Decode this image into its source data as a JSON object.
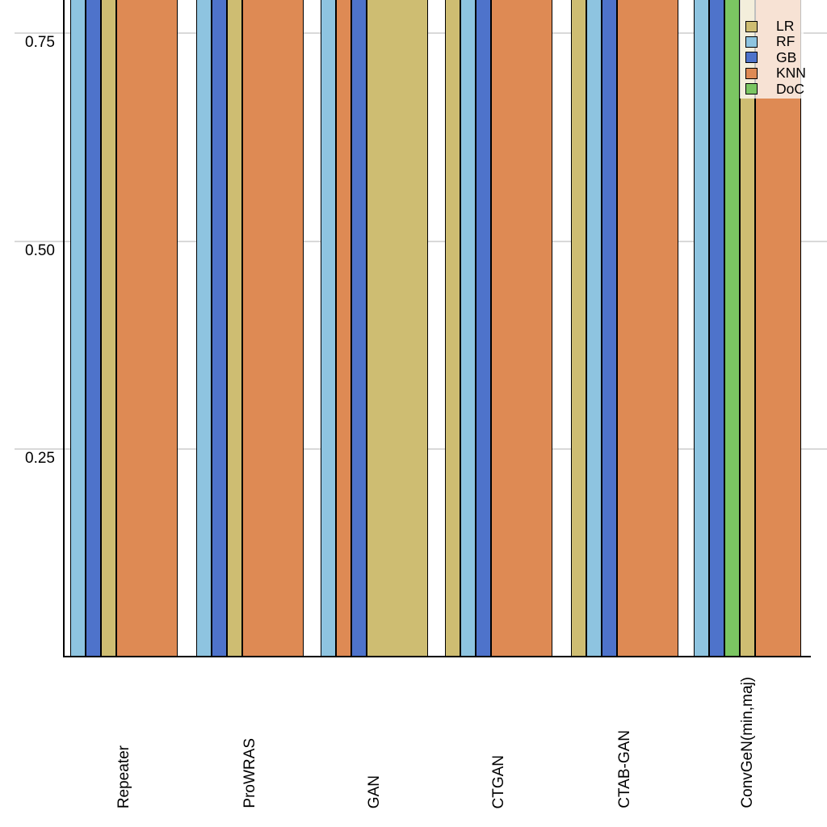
{
  "chart_data": {
    "type": "bar",
    "title": "",
    "xlabel": "",
    "ylabel": "",
    "categories": [
      "Repeater",
      "ProWRAS",
      "GAN",
      "CTGAN",
      "CTAB-GAN",
      "ConvGeN(min,maj)"
    ],
    "y_axis": {
      "tick_labels": [
        "0.75",
        "0.50",
        "0.25"
      ],
      "tick_values": [
        0.75,
        0.5,
        0.25
      ],
      "visible_value_range": [
        0.0,
        0.79
      ],
      "grid": true
    },
    "bars_clipped_at_top": true,
    "clip_note": "Every visible bar runs past the cropped top edge of the image; all depicted values exceed ~0.79 and exact bar tops are not visible.",
    "legend": {
      "position": "top-right",
      "entries": [
        {
          "label": "LR",
          "color": "#CEBD72"
        },
        {
          "label": "RF",
          "color": "#8EC4E0"
        },
        {
          "label": "GB",
          "color": "#4E73CB"
        },
        {
          "label": "KNN",
          "color": "#DE8A54"
        },
        {
          "label": "DoC",
          "color": "#7BC662"
        }
      ]
    },
    "series_colors": {
      "LR": "#CEBD72",
      "RF": "#8EC4E0",
      "GB": "#4E73CB",
      "KNN": "#DE8A54",
      "DoC": "#7BC662"
    },
    "groups": [
      {
        "category": "Repeater",
        "bars": [
          {
            "series": "RF",
            "units": 1
          },
          {
            "series": "GB",
            "units": 1
          },
          {
            "series": "LR",
            "units": 1
          },
          {
            "series": "KNN",
            "units": 4
          }
        ]
      },
      {
        "category": "ProWRAS",
        "bars": [
          {
            "series": "RF",
            "units": 1
          },
          {
            "series": "GB",
            "units": 1
          },
          {
            "series": "LR",
            "units": 1
          },
          {
            "series": "KNN",
            "units": 4
          }
        ]
      },
      {
        "category": "GAN",
        "bars": [
          {
            "series": "RF",
            "units": 1
          },
          {
            "series": "KNN",
            "units": 1
          },
          {
            "series": "GB",
            "units": 1
          },
          {
            "series": "LR",
            "units": 4
          }
        ]
      },
      {
        "category": "CTGAN",
        "bars": [
          {
            "series": "LR",
            "units": 1
          },
          {
            "series": "RF",
            "units": 1
          },
          {
            "series": "GB",
            "units": 1
          },
          {
            "series": "KNN",
            "units": 4
          }
        ]
      },
      {
        "category": "CTAB-GAN",
        "bars": [
          {
            "series": "LR",
            "units": 1
          },
          {
            "series": "RF",
            "units": 1
          },
          {
            "series": "GB",
            "units": 1
          },
          {
            "series": "KNN",
            "units": 4
          }
        ]
      },
      {
        "category": "ConvGeN(min,maj)",
        "bars": [
          {
            "series": "RF",
            "units": 1
          },
          {
            "series": "GB",
            "units": 1
          },
          {
            "series": "DoC",
            "units": 1
          },
          {
            "series": "LR",
            "units": 1
          },
          {
            "series": "KNN",
            "units": 3
          }
        ]
      }
    ]
  },
  "colors": {
    "background": "#FFFFFF",
    "gridline": "#D9D9D9",
    "axis": "#000000",
    "bar_border": "#000000",
    "legend_background": "rgba(255,255,255,0.75)"
  }
}
